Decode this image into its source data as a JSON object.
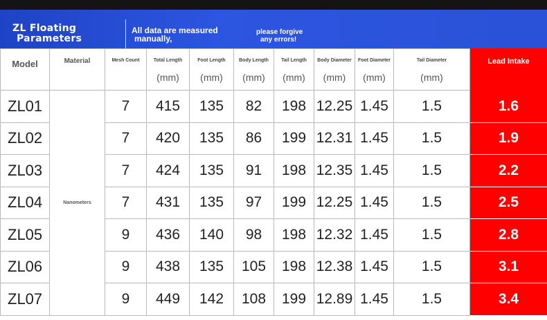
{
  "banner": {
    "title_line1": "ZL Floating",
    "title_line2": "Parameters",
    "note_line1": "All data are measured",
    "note_line2": "manually,",
    "apology_line1": "please forgive",
    "apology_line2": "any errors!"
  },
  "colors": {
    "banner": "#2a52d8",
    "lead_highlight": "#ff0000"
  },
  "table": {
    "headers": {
      "model": "Model",
      "material": "Material",
      "mesh_count": "Mesh Count",
      "total_length": "Total Length",
      "foot_length": "Foot Length",
      "body_length": "Body Length",
      "tail_length": "Tail Length",
      "body_diameter": "Body Diameter",
      "foot_diameter": "Foot Diameter",
      "tail_diameter": "Tail Diameter",
      "lead_intake": "Lead Intake"
    },
    "unit": "(mm)",
    "material_value": "Nanometers",
    "rows": [
      {
        "model": "ZL01",
        "mesh": "7",
        "total": "415",
        "foot": "135",
        "body": "82",
        "tail": "198",
        "body_dia": "12.25",
        "foot_dia": "1.45",
        "tail_dia": "1.5",
        "lead": "1.6"
      },
      {
        "model": "ZL02",
        "mesh": "7",
        "total": "420",
        "foot": "135",
        "body": "86",
        "tail": "199",
        "body_dia": "12.31",
        "foot_dia": "1.45",
        "tail_dia": "1.5",
        "lead": "1.9"
      },
      {
        "model": "ZL03",
        "mesh": "7",
        "total": "424",
        "foot": "135",
        "body": "91",
        "tail": "198",
        "body_dia": "12.35",
        "foot_dia": "1.45",
        "tail_dia": "1.5",
        "lead": "2.2"
      },
      {
        "model": "ZL04",
        "mesh": "7",
        "total": "431",
        "foot": "135",
        "body": "97",
        "tail": "199",
        "body_dia": "12.25",
        "foot_dia": "1.45",
        "tail_dia": "1.5",
        "lead": "2.5"
      },
      {
        "model": "ZL05",
        "mesh": "9",
        "total": "436",
        "foot": "140",
        "body": "98",
        "tail": "198",
        "body_dia": "12.32",
        "foot_dia": "1.45",
        "tail_dia": "1.5",
        "lead": "2.8"
      },
      {
        "model": "ZL06",
        "mesh": "9",
        "total": "438",
        "foot": "135",
        "body": "105",
        "tail": "198",
        "body_dia": "12.38",
        "foot_dia": "1.45",
        "tail_dia": "1.5",
        "lead": "3.1"
      },
      {
        "model": "ZL07",
        "mesh": "9",
        "total": "449",
        "foot": "142",
        "body": "108",
        "tail": "199",
        "body_dia": "12.89",
        "foot_dia": "1.45",
        "tail_dia": "1.5",
        "lead": "3.4"
      }
    ]
  }
}
